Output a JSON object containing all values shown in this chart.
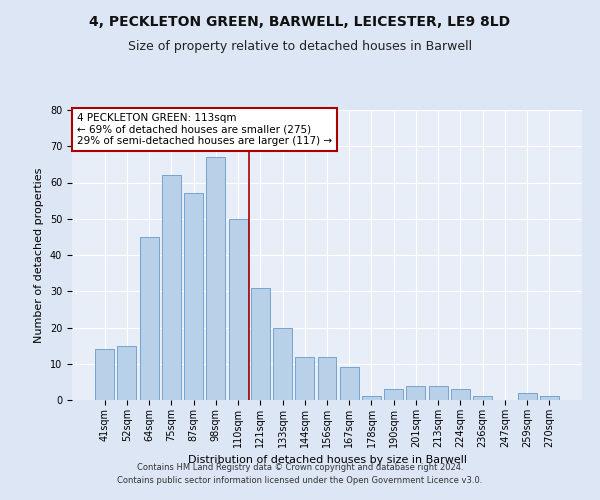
{
  "title_line1": "4, PECKLETON GREEN, BARWELL, LEICESTER, LE9 8LD",
  "title_line2": "Size of property relative to detached houses in Barwell",
  "xlabel": "Distribution of detached houses by size in Barwell",
  "ylabel": "Number of detached properties",
  "categories": [
    "41sqm",
    "52sqm",
    "64sqm",
    "75sqm",
    "87sqm",
    "98sqm",
    "110sqm",
    "121sqm",
    "133sqm",
    "144sqm",
    "156sqm",
    "167sqm",
    "178sqm",
    "190sqm",
    "201sqm",
    "213sqm",
    "224sqm",
    "236sqm",
    "247sqm",
    "259sqm",
    "270sqm"
  ],
  "values": [
    14,
    15,
    45,
    62,
    57,
    67,
    50,
    31,
    20,
    12,
    12,
    9,
    1,
    3,
    4,
    4,
    3,
    1,
    0,
    2,
    1
  ],
  "bar_color": "#b8d0e8",
  "bar_edge_color": "#6699cc",
  "background_color": "#e8eef8",
  "grid_color": "#ffffff",
  "vline_x": 6.5,
  "vline_color": "#aa0000",
  "annotation_text": "4 PECKLETON GREEN: 113sqm\n← 69% of detached houses are smaller (275)\n29% of semi-detached houses are larger (117) →",
  "annotation_box_color": "#aa0000",
  "ylim": [
    0,
    80
  ],
  "yticks": [
    0,
    10,
    20,
    30,
    40,
    50,
    60,
    70,
    80
  ],
  "footnote1": "Contains HM Land Registry data © Crown copyright and database right 2024.",
  "footnote2": "Contains public sector information licensed under the Open Government Licence v3.0.",
  "title_fontsize": 10,
  "subtitle_fontsize": 9,
  "axis_label_fontsize": 8,
  "tick_fontsize": 7,
  "annot_fontsize": 7.5,
  "footnote_fontsize": 6
}
